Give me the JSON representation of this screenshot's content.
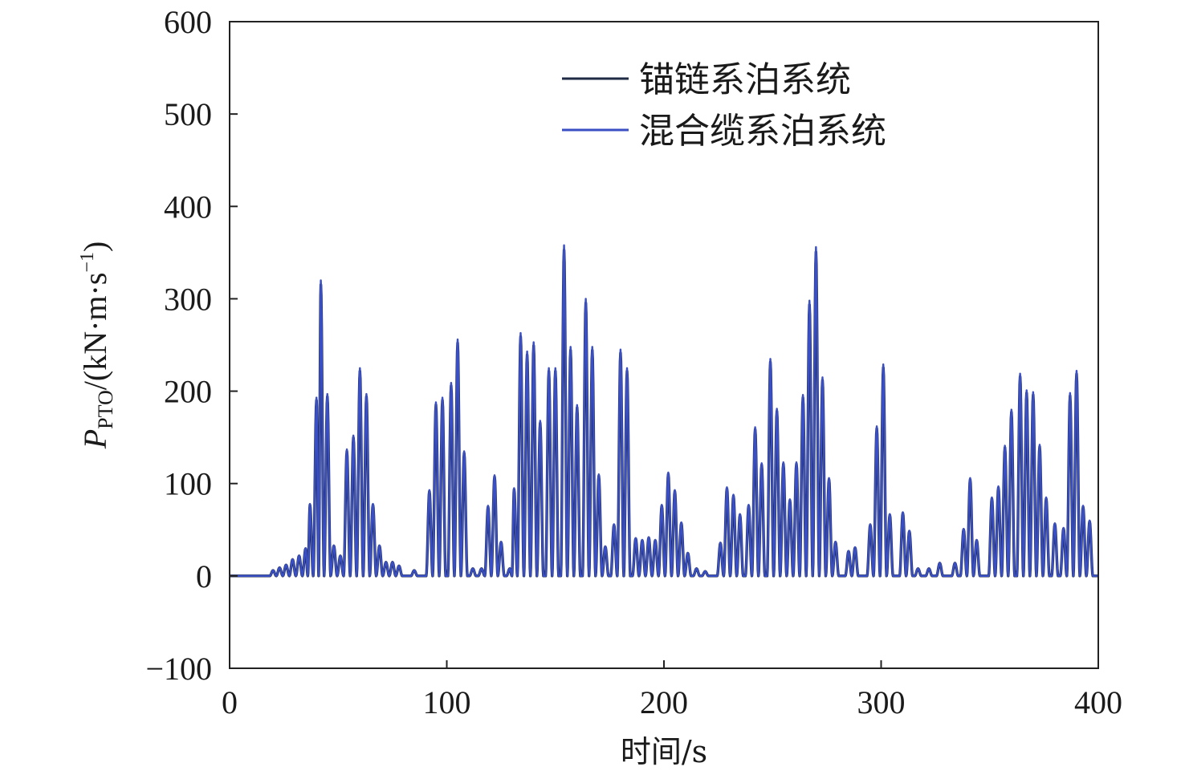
{
  "chart_data": {
    "type": "line",
    "xlabel": "时间/s",
    "ylabel": {
      "main": "P",
      "subscript": "PTO",
      "unit_prefix": "/(kN·m·s",
      "unit_exp": "−1",
      "unit_suffix": ")"
    },
    "xlim": [
      0,
      400
    ],
    "ylim": [
      -100,
      600
    ],
    "xticks": [
      0,
      100,
      200,
      300,
      400
    ],
    "yticks": [
      -100,
      0,
      100,
      200,
      300,
      400,
      500,
      600
    ],
    "xtick_labels": [
      "0",
      "100",
      "200",
      "300",
      "400"
    ],
    "ytick_labels": [
      "−100",
      "0",
      "100",
      "200",
      "300",
      "400",
      "500",
      "600"
    ],
    "grid": false,
    "legend_position": "top-right",
    "series": [
      {
        "name": "锚链系泊系统",
        "color": "#1f2a44"
      },
      {
        "name": "混合缆系泊系统",
        "color": "#3a4fc4"
      }
    ],
    "peaks": [
      [
        20,
        6
      ],
      [
        23,
        9
      ],
      [
        26,
        12
      ],
      [
        29,
        18
      ],
      [
        32,
        22
      ],
      [
        35,
        30
      ],
      [
        37,
        78
      ],
      [
        40,
        193
      ],
      [
        42,
        320
      ],
      [
        45,
        197
      ],
      [
        48,
        33
      ],
      [
        51,
        22
      ],
      [
        54,
        137
      ],
      [
        57,
        152
      ],
      [
        60,
        225
      ],
      [
        63,
        197
      ],
      [
        66,
        78
      ],
      [
        69,
        33
      ],
      [
        72,
        15
      ],
      [
        75,
        15
      ],
      [
        78,
        11
      ],
      [
        85,
        6
      ],
      [
        92,
        93
      ],
      [
        95,
        188
      ],
      [
        98,
        193
      ],
      [
        102,
        209
      ],
      [
        105,
        256
      ],
      [
        108,
        135
      ],
      [
        112,
        8
      ],
      [
        116,
        8
      ],
      [
        119,
        76
      ],
      [
        122,
        109
      ],
      [
        125,
        37
      ],
      [
        129,
        8
      ],
      [
        131,
        95
      ],
      [
        134,
        263
      ],
      [
        137,
        243
      ],
      [
        140,
        253
      ],
      [
        143,
        168
      ],
      [
        147,
        225
      ],
      [
        150,
        225
      ],
      [
        154,
        358
      ],
      [
        157,
        248
      ],
      [
        160,
        185
      ],
      [
        164,
        300
      ],
      [
        167,
        248
      ],
      [
        170,
        110
      ],
      [
        173,
        32
      ],
      [
        177,
        56
      ],
      [
        180,
        245
      ],
      [
        183,
        225
      ],
      [
        187,
        41
      ],
      [
        190,
        39
      ],
      [
        193,
        42
      ],
      [
        196,
        39
      ],
      [
        199,
        77
      ],
      [
        202,
        112
      ],
      [
        205,
        93
      ],
      [
        208,
        58
      ],
      [
        211,
        25
      ],
      [
        215,
        8
      ],
      [
        219,
        5
      ],
      [
        226,
        36
      ],
      [
        229,
        96
      ],
      [
        232,
        88
      ],
      [
        235,
        67
      ],
      [
        239,
        77
      ],
      [
        242,
        161
      ],
      [
        245,
        122
      ],
      [
        249,
        235
      ],
      [
        252,
        181
      ],
      [
        255,
        123
      ],
      [
        258,
        83
      ],
      [
        261,
        123
      ],
      [
        264,
        196
      ],
      [
        267,
        298
      ],
      [
        270,
        356
      ],
      [
        273,
        215
      ],
      [
        276,
        106
      ],
      [
        279,
        37
      ],
      [
        285,
        27
      ],
      [
        288,
        31
      ],
      [
        295,
        56
      ],
      [
        298,
        162
      ],
      [
        301,
        229
      ],
      [
        304,
        67
      ],
      [
        310,
        69
      ],
      [
        313,
        49
      ],
      [
        317,
        8
      ],
      [
        322,
        8
      ],
      [
        327,
        14
      ],
      [
        334,
        14
      ],
      [
        338,
        51
      ],
      [
        341,
        106
      ],
      [
        344,
        39
      ],
      [
        351,
        85
      ],
      [
        354,
        97
      ],
      [
        357,
        141
      ],
      [
        360,
        180
      ],
      [
        364,
        219
      ],
      [
        367,
        201
      ],
      [
        370,
        199
      ],
      [
        373,
        142
      ],
      [
        376,
        85
      ],
      [
        380,
        57
      ],
      [
        384,
        52
      ],
      [
        387,
        198
      ],
      [
        390,
        222
      ],
      [
        393,
        76
      ],
      [
        396,
        60
      ]
    ]
  }
}
